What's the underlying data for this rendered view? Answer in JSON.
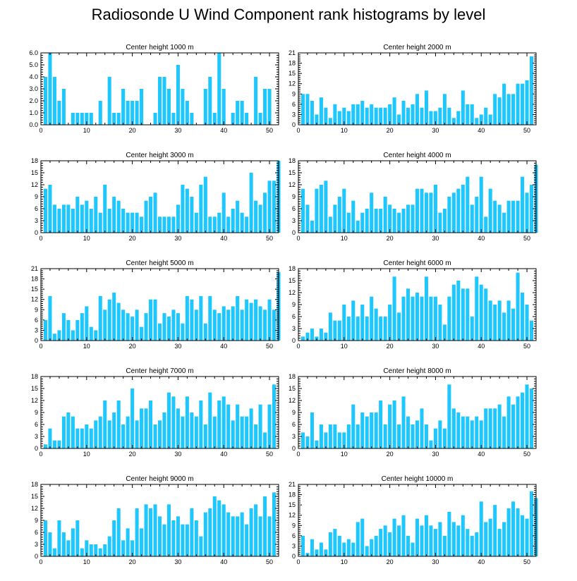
{
  "title": "Radiosonde U Wind Component rank histograms by level",
  "colors": {
    "bar": "#1EC8FF",
    "axis": "#000000",
    "background": "#FFFFFF"
  },
  "chart_data": [
    {
      "type": "bar",
      "title": "Center height 1000 m",
      "xlim": [
        0,
        52
      ],
      "ylim": [
        0,
        6
      ],
      "xticks": [
        0,
        10,
        20,
        30,
        40,
        50
      ],
      "yticks": [
        0,
        1,
        2,
        3,
        4,
        5,
        6
      ],
      "ytick_labels": [
        "0.0",
        "1.0",
        "2.0",
        "3.0",
        "4.0",
        "5.0",
        "6.0"
      ],
      "values": [
        4,
        6,
        4,
        2,
        3,
        0,
        1,
        1,
        1,
        1,
        1,
        0,
        2,
        0,
        4,
        1,
        1,
        3,
        2,
        2,
        2,
        3,
        0,
        0,
        1,
        4,
        4,
        3,
        1,
        5,
        3,
        2,
        1,
        0,
        0,
        3,
        4,
        1,
        6,
        3,
        0,
        1,
        2,
        2,
        1,
        0,
        4,
        1,
        3,
        3
      ]
    },
    {
      "type": "bar",
      "title": "Center height 2000 m",
      "xlim": [
        0,
        52
      ],
      "ylim": [
        0,
        21
      ],
      "xticks": [
        0,
        10,
        20,
        30,
        40,
        50
      ],
      "yticks": [
        0,
        3,
        6,
        9,
        12,
        15,
        18,
        21
      ],
      "ytick_labels": [
        "0",
        "3",
        "6",
        "9",
        "12",
        "15",
        "18",
        "21"
      ],
      "values": [
        9,
        9,
        7,
        3,
        8,
        5,
        2,
        6,
        4,
        5,
        4,
        6,
        6,
        7,
        5,
        6,
        5,
        5,
        5,
        6,
        8,
        3,
        7,
        5,
        6,
        9,
        5,
        10,
        4,
        4,
        5,
        9,
        5,
        2,
        4,
        10,
        6,
        6,
        2,
        3,
        5,
        3,
        9,
        8,
        12,
        9,
        9,
        12,
        12,
        13,
        20
      ]
    },
    {
      "type": "bar",
      "title": "Center height 3000 m",
      "xlim": [
        0,
        52
      ],
      "ylim": [
        0,
        18
      ],
      "xticks": [
        0,
        10,
        20,
        30,
        40,
        50
      ],
      "yticks": [
        0,
        3,
        6,
        9,
        12,
        15,
        18
      ],
      "ytick_labels": [
        "0",
        "3",
        "6",
        "9",
        "12",
        "15",
        "18"
      ],
      "values": [
        11,
        12,
        7,
        6,
        7,
        7,
        6,
        9,
        7,
        8,
        6,
        9,
        5,
        12,
        6,
        9,
        8,
        6,
        5,
        5,
        5,
        4,
        8,
        9,
        10,
        4,
        4,
        4,
        4,
        7,
        12,
        11,
        9,
        5,
        12,
        14,
        4,
        4,
        5,
        10,
        4,
        6,
        8,
        5,
        4,
        15,
        8,
        7,
        10,
        13,
        13,
        18
      ]
    },
    {
      "type": "bar",
      "title": "Center height 4000 m",
      "xlim": [
        0,
        52
      ],
      "ylim": [
        0,
        18
      ],
      "xticks": [
        0,
        10,
        20,
        30,
        40,
        50
      ],
      "yticks": [
        0,
        3,
        6,
        9,
        12,
        15,
        18
      ],
      "ytick_labels": [
        "0",
        "3",
        "6",
        "9",
        "12",
        "15",
        "18"
      ],
      "values": [
        11,
        7,
        3,
        11,
        12,
        13,
        4,
        7,
        9,
        11,
        5,
        8,
        3,
        5,
        6,
        10,
        6,
        6,
        9,
        7,
        6,
        5,
        6,
        7,
        7,
        11,
        11,
        10,
        10,
        12,
        5,
        6,
        9,
        10,
        11,
        12,
        14,
        7,
        9,
        14,
        4,
        11,
        8,
        7,
        5,
        8,
        8,
        8,
        14,
        10,
        12,
        17
      ]
    },
    {
      "type": "bar",
      "title": "Center height 5000 m",
      "xlim": [
        0,
        52
      ],
      "ylim": [
        0,
        21
      ],
      "xticks": [
        0,
        10,
        20,
        30,
        40,
        50
      ],
      "yticks": [
        0,
        3,
        6,
        9,
        12,
        15,
        18,
        21
      ],
      "ytick_labels": [
        "0",
        "3",
        "6",
        "9",
        "12",
        "15",
        "18",
        "21"
      ],
      "values": [
        6,
        13,
        2,
        3,
        8,
        6,
        3,
        6,
        8,
        10,
        4,
        3,
        13,
        9,
        12,
        14,
        11,
        9,
        8,
        7,
        9,
        4,
        8,
        12,
        12,
        5,
        8,
        7,
        9,
        8,
        5,
        13,
        12,
        9,
        13,
        5,
        13,
        9,
        8,
        10,
        9,
        10,
        13,
        9,
        12,
        11,
        12,
        10,
        9,
        12,
        9,
        20
      ]
    },
    {
      "type": "bar",
      "title": "Center height 6000 m",
      "xlim": [
        0,
        52
      ],
      "ylim": [
        0,
        18
      ],
      "xticks": [
        0,
        10,
        20,
        30,
        40,
        50
      ],
      "yticks": [
        0,
        3,
        6,
        9,
        12,
        15,
        18
      ],
      "ytick_labels": [
        "0",
        "3",
        "6",
        "9",
        "12",
        "15",
        "18"
      ],
      "values": [
        1,
        2,
        3,
        1,
        3,
        2,
        7,
        5,
        5,
        9,
        6,
        10,
        6,
        9,
        6,
        11,
        8,
        6,
        6,
        9,
        16,
        7,
        11,
        13,
        11,
        12,
        11,
        16,
        11,
        11,
        9,
        4,
        11,
        14,
        15,
        13,
        13,
        6,
        16,
        14,
        13,
        10,
        9,
        10,
        7,
        10,
        8,
        17,
        12,
        9,
        5
      ]
    },
    {
      "type": "bar",
      "title": "Center height 7000 m",
      "xlim": [
        0,
        52
      ],
      "ylim": [
        0,
        18
      ],
      "xticks": [
        0,
        10,
        20,
        30,
        40,
        50
      ],
      "yticks": [
        0,
        3,
        6,
        9,
        12,
        15,
        18
      ],
      "ytick_labels": [
        "0",
        "3",
        "6",
        "9",
        "12",
        "15",
        "18"
      ],
      "values": [
        1,
        5,
        2,
        2,
        8,
        9,
        8,
        5,
        5,
        6,
        5,
        7,
        8,
        12,
        7,
        9,
        12,
        6,
        8,
        15,
        7,
        10,
        10,
        12,
        6,
        7,
        9,
        14,
        13,
        10,
        8,
        13,
        9,
        8,
        12,
        6,
        14,
        8,
        12,
        13,
        11,
        7,
        11,
        8,
        8,
        10,
        6,
        11,
        4,
        11,
        16
      ]
    },
    {
      "type": "bar",
      "title": "Center height 8000 m",
      "xlim": [
        0,
        52
      ],
      "ylim": [
        0,
        18
      ],
      "xticks": [
        0,
        10,
        20,
        30,
        40,
        50
      ],
      "yticks": [
        0,
        3,
        6,
        9,
        12,
        15,
        18
      ],
      "ytick_labels": [
        "0",
        "3",
        "6",
        "9",
        "12",
        "15",
        "18"
      ],
      "values": [
        4,
        3,
        9,
        2,
        6,
        4,
        6,
        6,
        4,
        4,
        6,
        11,
        6,
        9,
        8,
        9,
        9,
        12,
        6,
        11,
        12,
        6,
        13,
        8,
        6,
        7,
        10,
        6,
        2,
        5,
        7,
        5,
        16,
        10,
        9,
        8,
        8,
        7,
        8,
        7,
        10,
        10,
        10,
        11,
        8,
        13,
        11,
        13,
        14,
        16,
        15
      ]
    },
    {
      "type": "bar",
      "title": "Center height 9000 m",
      "xlim": [
        0,
        52
      ],
      "ylim": [
        0,
        18
      ],
      "xticks": [
        0,
        10,
        20,
        30,
        40,
        50
      ],
      "yticks": [
        0,
        3,
        6,
        9,
        12,
        15,
        18
      ],
      "ytick_labels": [
        "0",
        "3",
        "6",
        "9",
        "12",
        "15",
        "18"
      ],
      "values": [
        9,
        6,
        2,
        9,
        6,
        4,
        7,
        9,
        2,
        4,
        3,
        3,
        2,
        3,
        5,
        9,
        12,
        4,
        7,
        4,
        12,
        7,
        13,
        12,
        13,
        10,
        8,
        13,
        9,
        10,
        8,
        8,
        12,
        9,
        5,
        11,
        12,
        15,
        14,
        13,
        11,
        10,
        10,
        11,
        8,
        12,
        13,
        10,
        15,
        10,
        16
      ]
    },
    {
      "type": "bar",
      "title": "Center height 10000 m",
      "xlim": [
        0,
        52
      ],
      "ylim": [
        0,
        21
      ],
      "xticks": [
        0,
        10,
        20,
        30,
        40,
        50
      ],
      "yticks": [
        0,
        3,
        6,
        9,
        12,
        15,
        18,
        21
      ],
      "ytick_labels": [
        "0",
        "3",
        "6",
        "9",
        "12",
        "15",
        "18",
        "21"
      ],
      "values": [
        6,
        1,
        5,
        2,
        4,
        2,
        7,
        8,
        6,
        4,
        5,
        4,
        10,
        11,
        3,
        5,
        6,
        8,
        9,
        7,
        11,
        9,
        12,
        6,
        4,
        11,
        9,
        12,
        9,
        8,
        10,
        6,
        13,
        10,
        9,
        12,
        8,
        6,
        7,
        16,
        10,
        11,
        15,
        8,
        10,
        14,
        16,
        14,
        12,
        11,
        19,
        17
      ]
    }
  ]
}
